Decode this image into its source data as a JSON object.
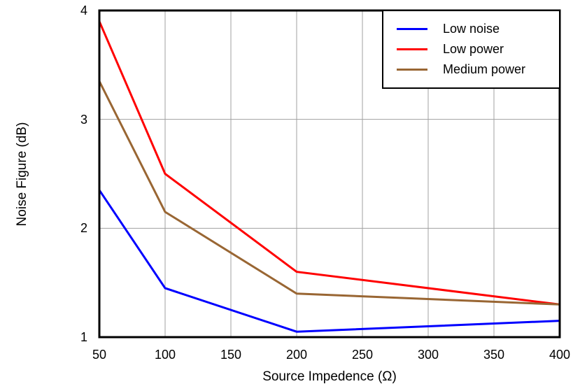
{
  "chart_data": {
    "type": "line",
    "title": "",
    "xlabel": "Source Impedence (Ω)",
    "ylabel": "Noise Figure (dB)",
    "xlim": [
      50,
      400
    ],
    "ylim": [
      1,
      4
    ],
    "xticks": [
      50,
      100,
      150,
      200,
      250,
      300,
      350,
      400
    ],
    "yticks": [
      1,
      2,
      3,
      4
    ],
    "grid": true,
    "legend_position": "top-right",
    "x": [
      50,
      100,
      200,
      400
    ],
    "series": [
      {
        "name": "Low noise",
        "color": "#0000ff",
        "values": [
          2.35,
          1.45,
          1.05,
          1.15
        ]
      },
      {
        "name": "Low power",
        "color": "#ff0000",
        "values": [
          3.9,
          2.5,
          1.6,
          1.3
        ]
      },
      {
        "name": "Medium power",
        "color": "#996633",
        "values": [
          3.35,
          2.15,
          1.4,
          1.3
        ]
      }
    ]
  },
  "colors": {
    "axis": "#000000",
    "grid": "#a0a0a0",
    "background": "#ffffff",
    "text": "#000000"
  }
}
